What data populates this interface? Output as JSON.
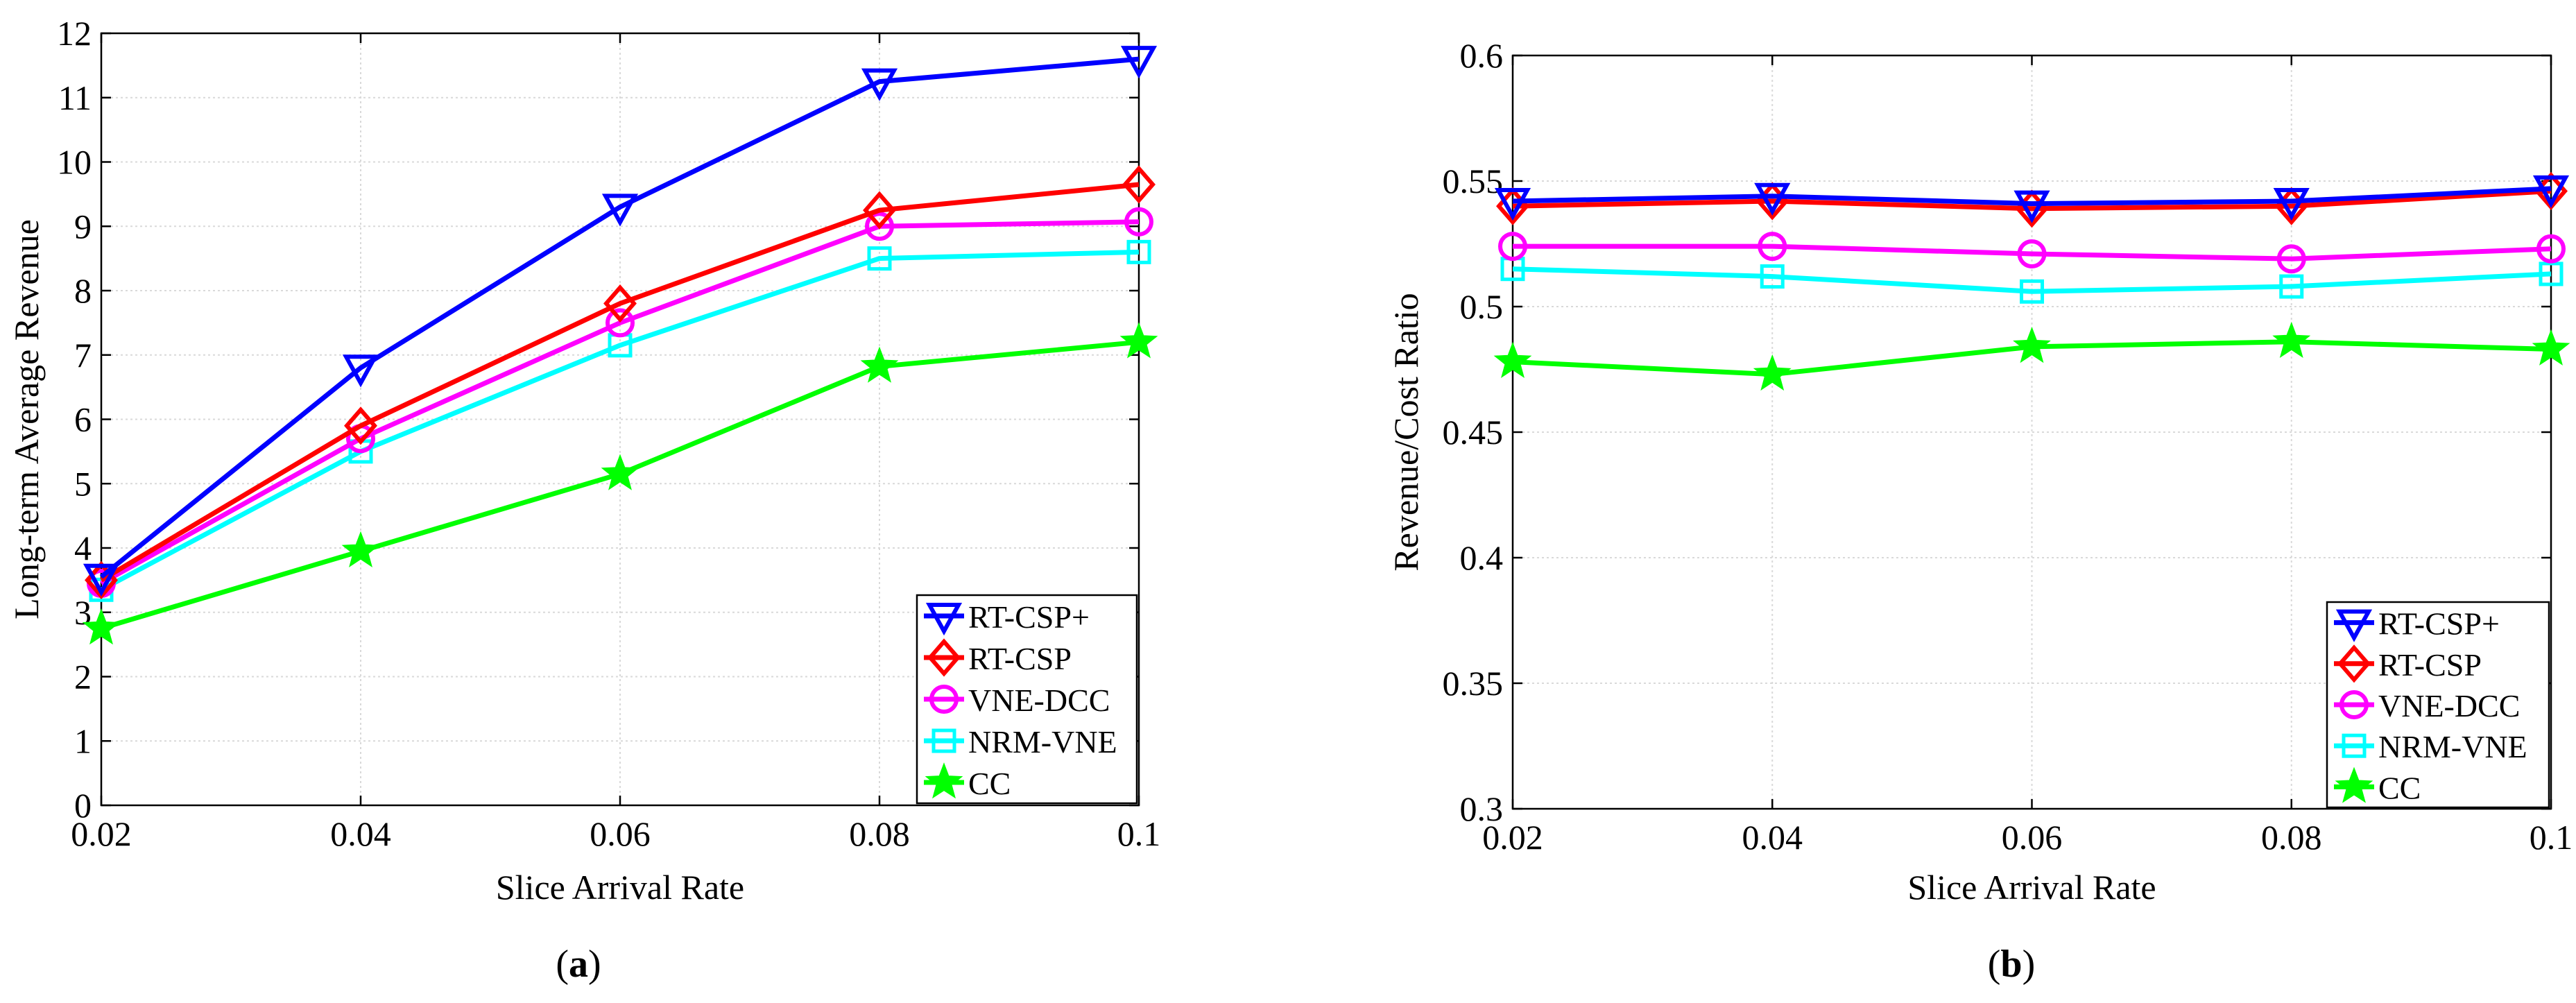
{
  "chart_data": [
    {
      "type": "line",
      "panel_label": "a",
      "title": "",
      "xlabel": "Slice Arrival Rate",
      "ylabel": "Long-term Average Revenue",
      "x": [
        0.02,
        0.04,
        0.06,
        0.08,
        0.1
      ],
      "x_tick_labels": [
        "0.02",
        "0.04",
        "0.06",
        "0.08",
        "0.1"
      ],
      "xlim": [
        0.02,
        0.1
      ],
      "ylim": [
        0,
        12
      ],
      "y_ticks": [
        0,
        1,
        2,
        3,
        4,
        5,
        6,
        7,
        8,
        9,
        10,
        11,
        12
      ],
      "y_tick_labels": [
        "0",
        "1",
        "2",
        "3",
        "4",
        "5",
        "6",
        "7",
        "8",
        "9",
        "10",
        "11",
        "12"
      ],
      "grid": true,
      "legend_position": "bottom-right",
      "series": [
        {
          "name": "RT-CSP+",
          "values": [
            3.55,
            6.8,
            9.3,
            11.25,
            11.6
          ],
          "color": "#0000ff",
          "marker": "triangle-down"
        },
        {
          "name": "RT-CSP",
          "values": [
            3.5,
            5.9,
            7.8,
            9.25,
            9.65
          ],
          "color": "#ff0000",
          "marker": "diamond"
        },
        {
          "name": "VNE-DCC",
          "values": [
            3.45,
            5.7,
            7.5,
            9.0,
            9.07
          ],
          "color": "#ff00ff",
          "marker": "circle"
        },
        {
          "name": "NRM-VNE",
          "values": [
            3.35,
            5.5,
            7.15,
            8.5,
            8.6
          ],
          "color": "#00ffff",
          "marker": "square"
        },
        {
          "name": "CC",
          "values": [
            2.75,
            3.95,
            5.15,
            6.82,
            7.2
          ],
          "color": "#00ff00",
          "marker": "star"
        }
      ]
    },
    {
      "type": "line",
      "panel_label": "b",
      "title": "",
      "xlabel": "Slice Arrival Rate",
      "ylabel": "Revenue/Cost Ratio",
      "x": [
        0.02,
        0.04,
        0.06,
        0.08,
        0.1
      ],
      "x_tick_labels": [
        "0.02",
        "0.04",
        "0.06",
        "0.08",
        "0.1"
      ],
      "xlim": [
        0.02,
        0.1
      ],
      "ylim": [
        0.3,
        0.6
      ],
      "y_ticks": [
        0.3,
        0.35,
        0.4,
        0.45,
        0.5,
        0.55,
        0.6
      ],
      "y_tick_labels": [
        "0.3",
        "0.35",
        "0.4",
        "0.45",
        "0.5",
        "0.55",
        "0.6"
      ],
      "grid": true,
      "legend_position": "bottom-right",
      "series": [
        {
          "name": "RT-CSP+",
          "values": [
            0.542,
            0.544,
            0.541,
            0.542,
            0.547
          ],
          "color": "#0000ff",
          "marker": "triangle-down"
        },
        {
          "name": "RT-CSP",
          "values": [
            0.54,
            0.542,
            0.539,
            0.54,
            0.546
          ],
          "color": "#ff0000",
          "marker": "diamond"
        },
        {
          "name": "VNE-DCC",
          "values": [
            0.524,
            0.524,
            0.521,
            0.519,
            0.523
          ],
          "color": "#ff00ff",
          "marker": "circle"
        },
        {
          "name": "NRM-VNE",
          "values": [
            0.515,
            0.512,
            0.506,
            0.508,
            0.513
          ],
          "color": "#00ffff",
          "marker": "square"
        },
        {
          "name": "CC",
          "values": [
            0.478,
            0.473,
            0.484,
            0.486,
            0.483
          ],
          "color": "#00ff00",
          "marker": "star"
        }
      ]
    }
  ]
}
